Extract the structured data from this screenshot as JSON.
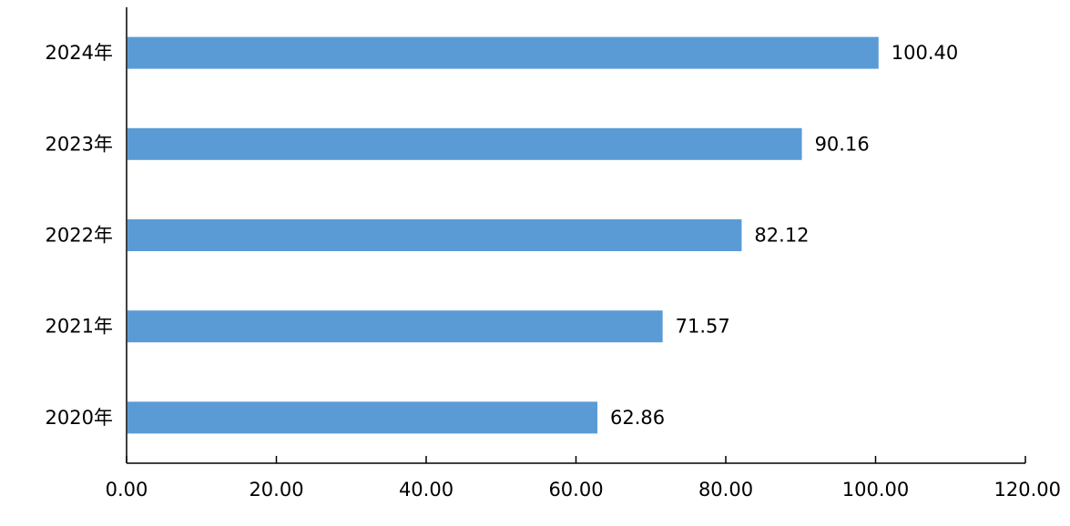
{
  "chart_data": {
    "type": "bar",
    "orientation": "horizontal",
    "categories": [
      "2020年",
      "2021年",
      "2022年",
      "2023年",
      "2024年"
    ],
    "values": [
      62.86,
      71.57,
      82.12,
      90.16,
      100.4
    ],
    "value_labels": [
      "62.86",
      "71.57",
      "82.12",
      "90.16",
      "100.40"
    ],
    "x_ticks": [
      "0.00",
      "20.00",
      "40.00",
      "60.00",
      "80.00",
      "100.00",
      "120.00"
    ],
    "xlim": [
      0,
      120
    ],
    "grid": false,
    "legend": "none",
    "bar_color": "#5b9bd5",
    "title": "",
    "xlabel": "",
    "ylabel": ""
  }
}
